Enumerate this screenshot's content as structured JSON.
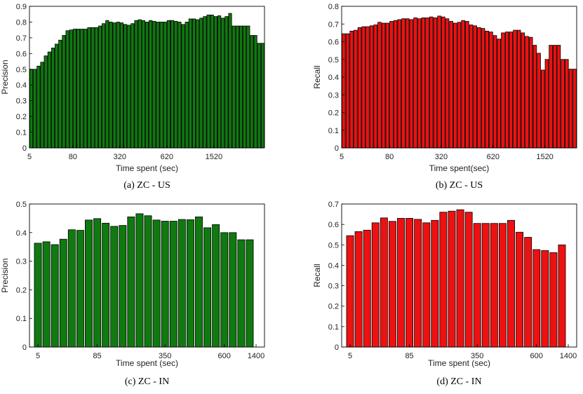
{
  "chart_data": [
    {
      "type": "bar",
      "caption": "(a) ZC - US",
      "xlabel": "Time spent (sec)",
      "ylabel": "Precision",
      "ylim": [
        0,
        0.9
      ],
      "yticks": [
        "0",
        "0.1",
        "0.2",
        "0.3",
        "0.4",
        "0.5",
        "0.6",
        "0.7",
        "0.8",
        "0.9"
      ],
      "xticks": [
        "5",
        "80",
        "320",
        "620",
        "1520"
      ],
      "xtick_bins": [
        0,
        12,
        25,
        38,
        51
      ],
      "color": "#0f7a0f",
      "values": [
        0.5,
        0.5,
        0.52,
        0.545,
        0.585,
        0.61,
        0.635,
        0.66,
        0.685,
        0.715,
        0.745,
        0.75,
        0.755,
        0.755,
        0.755,
        0.755,
        0.765,
        0.765,
        0.765,
        0.775,
        0.79,
        0.81,
        0.8,
        0.795,
        0.8,
        0.795,
        0.785,
        0.78,
        0.79,
        0.81,
        0.815,
        0.81,
        0.8,
        0.81,
        0.805,
        0.8,
        0.8,
        0.8,
        0.81,
        0.81,
        0.805,
        0.8,
        0.785,
        0.8,
        0.82,
        0.82,
        0.815,
        0.825,
        0.835,
        0.845,
        0.845,
        0.835,
        0.84,
        0.825,
        0.835,
        0.855,
        0.775,
        0.775,
        0.775,
        0.775,
        0.775,
        0.715,
        0.715,
        0.665,
        0.665
      ]
    },
    {
      "type": "bar",
      "caption": "(b) ZC - US",
      "xlabel": "Time spent(sec)",
      "ylabel": "Recall",
      "ylim": [
        0,
        0.8
      ],
      "yticks": [
        "0",
        "0.1",
        "0.2",
        "0.3",
        "0.4",
        "0.5",
        "0.6",
        "0.7",
        "0.8"
      ],
      "xticks": [
        "5",
        "80",
        "320",
        "620",
        "1520"
      ],
      "xtick_bins": [
        0,
        12,
        25,
        38,
        51
      ],
      "color": "#ee1111",
      "values": [
        0.645,
        0.645,
        0.66,
        0.665,
        0.68,
        0.685,
        0.685,
        0.69,
        0.695,
        0.71,
        0.705,
        0.705,
        0.715,
        0.72,
        0.725,
        0.73,
        0.73,
        0.725,
        0.735,
        0.73,
        0.735,
        0.735,
        0.74,
        0.735,
        0.745,
        0.74,
        0.73,
        0.715,
        0.705,
        0.71,
        0.72,
        0.715,
        0.695,
        0.69,
        0.68,
        0.675,
        0.66,
        0.655,
        0.635,
        0.615,
        0.65,
        0.655,
        0.655,
        0.665,
        0.665,
        0.65,
        0.63,
        0.625,
        0.58,
        0.535,
        0.44,
        0.5,
        0.58,
        0.58,
        0.58,
        0.5,
        0.5,
        0.445,
        0.445
      ]
    },
    {
      "type": "bar",
      "caption": "(c) ZC - IN",
      "xlabel": "Time spent (sec)",
      "ylabel": "Precision",
      "ylim": [
        0,
        0.5
      ],
      "yticks": [
        "0",
        "0.1",
        "0.2",
        "0.3",
        "0.4",
        "0.5"
      ],
      "xticks": [
        "5",
        "85",
        "350",
        "600",
        "1400"
      ],
      "xtick_bins": [
        0,
        7,
        15,
        22,
        30
      ],
      "color": "#0f7a0f",
      "values": [
        0.363,
        0.368,
        0.358,
        0.377,
        0.41,
        0.408,
        0.444,
        0.449,
        0.433,
        0.422,
        0.425,
        0.455,
        0.466,
        0.459,
        0.444,
        0.44,
        0.44,
        0.446,
        0.445,
        0.455,
        0.417,
        0.428,
        0.4,
        0.4,
        0.375,
        0.375
      ]
    },
    {
      "type": "bar",
      "caption": "(d) ZC - IN",
      "xlabel": "Time spent (sec)",
      "ylabel": "Recall",
      "ylim": [
        0,
        0.7
      ],
      "yticks": [
        "0",
        "0.1",
        "0.2",
        "0.3",
        "0.4",
        "0.5",
        "0.6",
        "0.7"
      ],
      "xticks": [
        "5",
        "85",
        "350",
        "600",
        "1400"
      ],
      "xtick_bins": [
        0,
        7,
        15,
        22,
        30
      ],
      "color": "#ee1111",
      "values": [
        0.545,
        0.565,
        0.572,
        0.608,
        0.632,
        0.615,
        0.63,
        0.63,
        0.625,
        0.608,
        0.62,
        0.66,
        0.665,
        0.672,
        0.66,
        0.605,
        0.605,
        0.605,
        0.605,
        0.62,
        0.562,
        0.537,
        0.477,
        0.472,
        0.462,
        0.5
      ]
    }
  ]
}
